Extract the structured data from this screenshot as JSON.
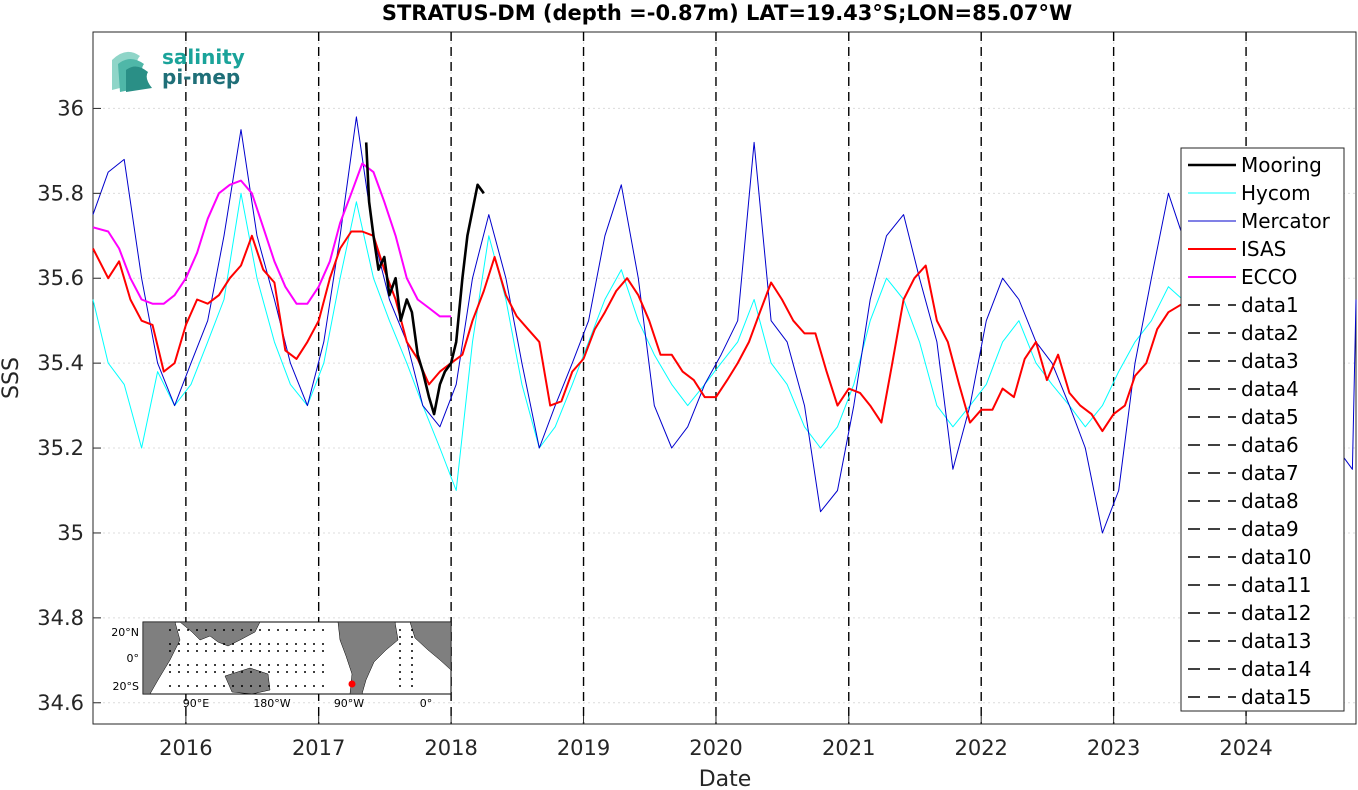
{
  "chart_data": {
    "type": "line",
    "title": "STRATUS-DM (depth =-0.87m) LAT=19.43°S;LON=85.07°W",
    "xlabel": "Date",
    "ylabel": "SSS",
    "xlim": [
      "2015-04-20",
      "2024-10-30"
    ],
    "ylim": [
      34.55,
      36.18
    ],
    "grid": true,
    "legend_position": "right",
    "x_ticks": [
      "2016",
      "2017",
      "2018",
      "2019",
      "2020",
      "2021",
      "2022",
      "2023",
      "2024"
    ],
    "y_ticks": [
      "34.6",
      "34.8",
      "35",
      "35.2",
      "35.4",
      "35.6",
      "35.8",
      "36"
    ],
    "legend": [
      "Mooring",
      "Hycom",
      "Mercator",
      "ISAS",
      "ECCO",
      "data1",
      "data2",
      "data3",
      "data4",
      "data5",
      "data6",
      "data7",
      "data8",
      "data9",
      "data10",
      "data11",
      "data12",
      "data13",
      "data14",
      "data15"
    ],
    "series": [
      {
        "name": "Mooring",
        "color": "#000000",
        "x": [
          "2017-05-12",
          "2017-05-20",
          "2017-06-01",
          "2017-06-15",
          "2017-07-01",
          "2017-07-15",
          "2017-08-01",
          "2017-08-15",
          "2017-09-01",
          "2017-09-15",
          "2017-10-01",
          "2017-10-15",
          "2017-11-01",
          "2017-11-15",
          "2017-12-01",
          "2017-12-15",
          "2018-01-01",
          "2018-01-15",
          "2018-02-01",
          "2018-02-15",
          "2018-03-01",
          "2018-03-15",
          "2018-04-01"
        ],
        "y": [
          35.92,
          35.78,
          35.7,
          35.62,
          35.65,
          35.56,
          35.6,
          35.5,
          35.55,
          35.52,
          35.42,
          35.38,
          35.32,
          35.28,
          35.35,
          35.38,
          35.4,
          35.45,
          35.6,
          35.7,
          35.76,
          35.82,
          35.8
        ]
      },
      {
        "name": "Hycom",
        "color": "#00ffff",
        "x": [
          "2015-04-20",
          "2015-06-01",
          "2015-07-15",
          "2015-09-01",
          "2015-10-15",
          "2015-12-01",
          "2016-01-15",
          "2016-03-01",
          "2016-04-15",
          "2016-06-01",
          "2016-07-15",
          "2016-09-01",
          "2016-10-15",
          "2016-12-01",
          "2017-01-15",
          "2017-03-01",
          "2017-04-15",
          "2017-06-01",
          "2017-07-15",
          "2017-09-01",
          "2017-10-15",
          "2017-12-01",
          "2018-01-15",
          "2018-03-01",
          "2018-04-15",
          "2018-06-01",
          "2018-07-15",
          "2018-09-01",
          "2018-10-15",
          "2018-12-01",
          "2019-01-15",
          "2019-03-01",
          "2019-04-15",
          "2019-06-01",
          "2019-07-15",
          "2019-09-01",
          "2019-10-15",
          "2019-12-01",
          "2020-01-15",
          "2020-03-01",
          "2020-04-15",
          "2020-06-01",
          "2020-07-15",
          "2020-09-01",
          "2020-10-15",
          "2020-12-01",
          "2021-01-15",
          "2021-03-01",
          "2021-04-15",
          "2021-06-01",
          "2021-07-15",
          "2021-09-01",
          "2021-10-15",
          "2021-12-01",
          "2022-01-15",
          "2022-03-01",
          "2022-04-15",
          "2022-06-01",
          "2022-07-15",
          "2022-09-01",
          "2022-10-15",
          "2022-12-01",
          "2023-01-15",
          "2023-03-01",
          "2023-04-15",
          "2023-06-01",
          "2023-07-10"
        ],
        "y": [
          35.55,
          35.4,
          35.35,
          35.2,
          35.38,
          35.3,
          35.35,
          35.45,
          35.55,
          35.8,
          35.6,
          35.45,
          35.35,
          35.3,
          35.4,
          35.6,
          35.78,
          35.6,
          35.5,
          35.4,
          35.3,
          35.2,
          35.1,
          35.45,
          35.7,
          35.55,
          35.35,
          35.2,
          35.25,
          35.35,
          35.45,
          35.55,
          35.62,
          35.5,
          35.42,
          35.35,
          35.3,
          35.35,
          35.4,
          35.45,
          35.55,
          35.4,
          35.35,
          35.25,
          35.2,
          35.25,
          35.35,
          35.5,
          35.6,
          35.55,
          35.45,
          35.3,
          35.25,
          35.3,
          35.35,
          35.45,
          35.5,
          35.4,
          35.35,
          35.3,
          35.25,
          35.3,
          35.38,
          35.45,
          35.5,
          35.58,
          35.55
        ]
      },
      {
        "name": "Mercator",
        "color": "#0000cd",
        "x": [
          "2015-04-20",
          "2015-06-01",
          "2015-07-15",
          "2015-09-01",
          "2015-10-15",
          "2015-12-01",
          "2016-01-15",
          "2016-03-01",
          "2016-04-15",
          "2016-06-01",
          "2016-07-15",
          "2016-09-01",
          "2016-10-15",
          "2016-12-01",
          "2017-01-15",
          "2017-03-01",
          "2017-04-15",
          "2017-06-01",
          "2017-07-15",
          "2017-09-01",
          "2017-10-15",
          "2017-12-01",
          "2018-01-15",
          "2018-03-01",
          "2018-04-15",
          "2018-06-01",
          "2018-07-15",
          "2018-09-01",
          "2018-10-15",
          "2018-12-01",
          "2019-01-15",
          "2019-03-01",
          "2019-04-15",
          "2019-06-01",
          "2019-07-15",
          "2019-09-01",
          "2019-10-15",
          "2019-12-01",
          "2020-01-15",
          "2020-03-01",
          "2020-04-15",
          "2020-06-01",
          "2020-07-15",
          "2020-09-01",
          "2020-10-15",
          "2020-12-01",
          "2021-01-15",
          "2021-03-01",
          "2021-04-15",
          "2021-06-01",
          "2021-07-15",
          "2021-09-01",
          "2021-10-15",
          "2021-12-01",
          "2022-01-15",
          "2022-03-01",
          "2022-04-15",
          "2022-06-01",
          "2022-07-15",
          "2022-09-01",
          "2022-10-15",
          "2022-12-01",
          "2023-01-15",
          "2023-03-01",
          "2023-04-15",
          "2023-06-01",
          "2023-07-10",
          "2024-10-20",
          "2024-10-30"
        ],
        "y": [
          35.75,
          35.85,
          35.88,
          35.6,
          35.4,
          35.3,
          35.4,
          35.5,
          35.7,
          35.95,
          35.7,
          35.55,
          35.4,
          35.3,
          35.45,
          35.7,
          35.98,
          35.7,
          35.55,
          35.45,
          35.3,
          35.25,
          35.35,
          35.6,
          35.75,
          35.6,
          35.4,
          35.2,
          35.3,
          35.4,
          35.5,
          35.7,
          35.82,
          35.6,
          35.3,
          35.2,
          35.25,
          35.35,
          35.42,
          35.5,
          35.92,
          35.5,
          35.45,
          35.3,
          35.05,
          35.1,
          35.3,
          35.55,
          35.7,
          35.75,
          35.6,
          35.45,
          35.15,
          35.3,
          35.5,
          35.6,
          35.55,
          35.45,
          35.4,
          35.3,
          35.2,
          35.0,
          35.1,
          35.4,
          35.6,
          35.8,
          35.7,
          35.15,
          35.55
        ]
      },
      {
        "name": "ISAS",
        "color": "#ff0000",
        "x": [
          "2015-04-20",
          "2015-06-01",
          "2015-07-01",
          "2015-08-01",
          "2015-09-01",
          "2015-10-01",
          "2015-11-01",
          "2015-12-01",
          "2016-01-01",
          "2016-02-01",
          "2016-03-01",
          "2016-04-01",
          "2016-05-01",
          "2016-06-01",
          "2016-07-01",
          "2016-08-01",
          "2016-09-01",
          "2016-10-01",
          "2016-11-01",
          "2016-12-01",
          "2017-01-01",
          "2017-02-01",
          "2017-03-01",
          "2017-04-01",
          "2017-05-01",
          "2017-06-01",
          "2017-07-01",
          "2017-08-01",
          "2017-09-01",
          "2017-10-01",
          "2017-11-01",
          "2017-12-01",
          "2018-01-01",
          "2018-02-01",
          "2018-03-01",
          "2018-04-01",
          "2018-05-01",
          "2018-06-01",
          "2018-07-01",
          "2018-08-01",
          "2018-09-01",
          "2018-10-01",
          "2018-11-01",
          "2018-12-01",
          "2019-01-01",
          "2019-02-01",
          "2019-03-01",
          "2019-04-01",
          "2019-05-01",
          "2019-06-01",
          "2019-07-01",
          "2019-08-01",
          "2019-09-01",
          "2019-10-01",
          "2019-11-01",
          "2019-12-01",
          "2020-01-01",
          "2020-02-01",
          "2020-03-01",
          "2020-04-01",
          "2020-05-01",
          "2020-06-01",
          "2020-07-01",
          "2020-08-01",
          "2020-09-01",
          "2020-10-01",
          "2020-11-01",
          "2020-12-01",
          "2021-01-01",
          "2021-02-01",
          "2021-03-01",
          "2021-04-01",
          "2021-05-01",
          "2021-06-01",
          "2021-07-01",
          "2021-08-01",
          "2021-09-01",
          "2021-10-01",
          "2021-11-01",
          "2021-12-01",
          "2022-01-01",
          "2022-02-01",
          "2022-03-01",
          "2022-04-01",
          "2022-05-01",
          "2022-06-01",
          "2022-07-01",
          "2022-08-01",
          "2022-09-01",
          "2022-10-01",
          "2022-11-01",
          "2022-12-01",
          "2023-01-01",
          "2023-02-01",
          "2023-03-01",
          "2023-04-01",
          "2023-05-01",
          "2023-06-01",
          "2023-07-10"
        ],
        "y": [
          35.67,
          35.6,
          35.64,
          35.55,
          35.5,
          35.49,
          35.38,
          35.4,
          35.49,
          35.55,
          35.54,
          35.56,
          35.6,
          35.63,
          35.7,
          35.62,
          35.59,
          35.43,
          35.41,
          35.45,
          35.5,
          35.6,
          35.67,
          35.71,
          35.71,
          35.7,
          35.62,
          35.55,
          35.45,
          35.41,
          35.35,
          35.38,
          35.4,
          35.42,
          35.5,
          35.57,
          35.65,
          35.56,
          35.51,
          35.48,
          35.45,
          35.3,
          35.31,
          35.38,
          35.41,
          35.48,
          35.52,
          35.57,
          35.6,
          35.56,
          35.5,
          35.42,
          35.42,
          35.38,
          35.36,
          35.32,
          35.32,
          35.36,
          35.4,
          35.45,
          35.52,
          35.59,
          35.55,
          35.5,
          35.47,
          35.47,
          35.38,
          35.3,
          35.34,
          35.33,
          35.3,
          35.26,
          35.4,
          35.55,
          35.6,
          35.63,
          35.5,
          35.45,
          35.35,
          35.26,
          35.29,
          35.29,
          35.34,
          35.32,
          35.41,
          35.45,
          35.36,
          35.42,
          35.33,
          35.3,
          35.28,
          35.24,
          35.28,
          35.3,
          35.37,
          35.4,
          35.48,
          35.52,
          35.54
        ]
      },
      {
        "name": "ECCO",
        "color": "#ff00ff",
        "x": [
          "2015-04-20",
          "2015-06-01",
          "2015-07-01",
          "2015-08-01",
          "2015-09-01",
          "2015-10-01",
          "2015-11-01",
          "2015-12-01",
          "2016-01-01",
          "2016-02-01",
          "2016-03-01",
          "2016-04-01",
          "2016-05-01",
          "2016-06-01",
          "2016-07-01",
          "2016-08-01",
          "2016-09-01",
          "2016-10-01",
          "2016-11-01",
          "2016-12-01",
          "2017-01-01",
          "2017-02-01",
          "2017-03-01",
          "2017-04-01",
          "2017-05-01",
          "2017-06-01",
          "2017-07-01",
          "2017-08-01",
          "2017-09-01",
          "2017-10-01",
          "2017-11-01",
          "2017-12-01",
          "2018-01-01"
        ],
        "y": [
          35.72,
          35.71,
          35.67,
          35.6,
          35.55,
          35.54,
          35.54,
          35.56,
          35.6,
          35.66,
          35.74,
          35.8,
          35.82,
          35.83,
          35.8,
          35.72,
          35.64,
          35.58,
          35.54,
          35.54,
          35.58,
          35.64,
          35.73,
          35.8,
          35.87,
          35.85,
          35.78,
          35.7,
          35.6,
          35.55,
          35.53,
          35.51,
          35.51
        ]
      }
    ],
    "vertical_lines": [
      "2016-01-01",
      "2017-01-01",
      "2018-01-01",
      "2019-01-01",
      "2020-01-01",
      "2021-01-01",
      "2022-01-01",
      "2023-01-01",
      "2024-01-01"
    ],
    "inset_map": {
      "lat_labels": [
        "20°N",
        "0°",
        "20°S"
      ],
      "lon_labels": [
        "90°E",
        "180°W",
        "90°W",
        "0°"
      ]
    },
    "logo_text": [
      "salinity",
      "pi-mep"
    ]
  }
}
